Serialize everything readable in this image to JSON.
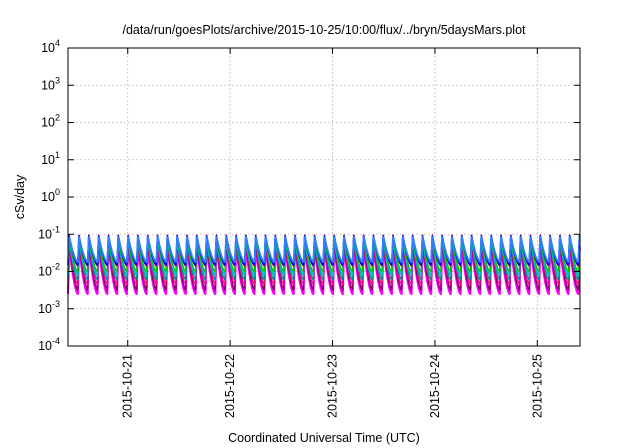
{
  "chart_data": {
    "type": "line",
    "title": "/data/run/goesPlots/archive/2015-10-25/10:00/flux/../bryn/5daysMars.plot",
    "xlabel": "Coordinated Universal Time (UTC)",
    "ylabel": "cSv/day",
    "x_scale": "date",
    "y_scale": "log",
    "xlim": [
      "2015-10-20T10:00",
      "2015-10-25T10:00"
    ],
    "ylim": [
      0.0001,
      10000
    ],
    "grid": true,
    "x_ticks": [
      {
        "label": "2015-10-21",
        "t": "2015-10-21T00:00"
      },
      {
        "label": "2015-10-22",
        "t": "2015-10-22T00:00"
      },
      {
        "label": "2015-10-23",
        "t": "2015-10-23T00:00"
      },
      {
        "label": "2015-10-24",
        "t": "2015-10-24T00:00"
      },
      {
        "label": "2015-10-25",
        "t": "2015-10-25T00:00"
      }
    ],
    "y_ticks": [
      {
        "base": "10",
        "exp": "-4",
        "value": 0.0001
      },
      {
        "base": "10",
        "exp": "-3",
        "value": 0.001
      },
      {
        "base": "10",
        "exp": "-2",
        "value": 0.01
      },
      {
        "base": "10",
        "exp": "-1",
        "value": 0.1
      },
      {
        "base": "10",
        "exp": "0",
        "value": 1
      },
      {
        "base": "10",
        "exp": "1",
        "value": 10
      },
      {
        "base": "10",
        "exp": "2",
        "value": 100
      },
      {
        "base": "10",
        "exp": "3",
        "value": 1000
      },
      {
        "base": "10",
        "exp": "4",
        "value": 10000
      }
    ],
    "sawtooth": {
      "period_hours": 2.3,
      "phase_start": "2015-10-20T10:00"
    },
    "series": [
      {
        "color": "#ff00ff",
        "peak": 0.05,
        "trough": 0.0025,
        "width": 2.2
      },
      {
        "color": "#cc00cc",
        "peak": 0.055,
        "trough": 0.003,
        "width": 1.4
      },
      {
        "color": "#800060",
        "peak": 0.06,
        "trough": 0.0033,
        "width": 1.2
      },
      {
        "color": "#ff0080",
        "peak": 0.065,
        "trough": 0.0045,
        "width": 1.2
      },
      {
        "color": "#009090",
        "peak": 0.072,
        "trough": 0.006,
        "width": 1.4
      },
      {
        "color": "#00c0c0",
        "peak": 0.08,
        "trough": 0.008,
        "width": 1.6
      },
      {
        "color": "#00c000",
        "peak": 0.085,
        "trough": 0.01,
        "width": 1.2
      },
      {
        "color": "#ff0000",
        "peak": 0.1,
        "trough": 0.014,
        "width": 1.2
      },
      {
        "color": "#0000ff",
        "peak": 0.095,
        "trough": 0.015,
        "width": 1.6
      },
      {
        "color": "#3080ff",
        "peak": 0.088,
        "trough": 0.018,
        "width": 1.8
      }
    ]
  }
}
